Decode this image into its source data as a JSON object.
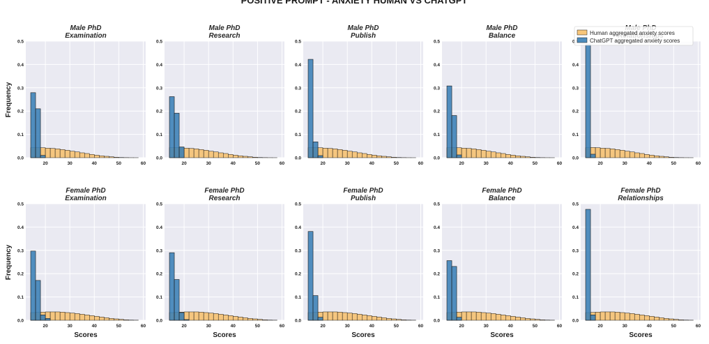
{
  "figure_title": "POSITIVE PROMPT - ANXIETY HUMAN VS CHATGPT",
  "axis_labels": {
    "x": "Scores",
    "y": "Frequency"
  },
  "colors": {
    "human": "#f7c06b",
    "chatgpt": "#3a7fb6",
    "panel_bg": "#eaeaf2",
    "grid": "#ffffff",
    "edge": "#1a1a1a"
  },
  "legend": {
    "location": "top-right of last top-row panel",
    "entries": [
      "Human aggregated anxiety scores",
      "ChatGPT aggregated anxiety scores"
    ]
  },
  "chart_data": {
    "type": "histogram",
    "xlim": [
      12,
      61
    ],
    "ylim": [
      0,
      0.5
    ],
    "xticks": [
      20,
      30,
      40,
      50,
      60
    ],
    "yticks": [
      0.0,
      0.1,
      0.2,
      0.3,
      0.4,
      0.5
    ],
    "bin_width": 2,
    "bin_start": 14,
    "human_rows": [
      [
        0.043,
        0.044,
        0.043,
        0.041,
        0.04,
        0.038,
        0.035,
        0.032,
        0.028,
        0.025,
        0.021,
        0.018,
        0.014,
        0.011,
        0.008,
        0.006,
        0.004,
        0.002,
        0.001,
        0.0005,
        0.0002,
        0.0001
      ],
      [
        0.033,
        0.034,
        0.035,
        0.036,
        0.036,
        0.036,
        0.035,
        0.033,
        0.031,
        0.029,
        0.026,
        0.023,
        0.02,
        0.017,
        0.014,
        0.011,
        0.008,
        0.006,
        0.004,
        0.002,
        0.001,
        0.0005
      ]
    ],
    "panels": [
      {
        "title_line1": "Male PhD",
        "title_line2": "Examination",
        "chatgpt_values": [
          0.279,
          0.21,
          0.01
        ]
      },
      {
        "title_line1": "Male PhD",
        "title_line2": "Research",
        "chatgpt_values": [
          0.262,
          0.191,
          0.046
        ]
      },
      {
        "title_line1": "Male PhD",
        "title_line2": "Publish",
        "chatgpt_values": [
          0.422,
          0.068,
          0.009
        ]
      },
      {
        "title_line1": "Male PhD",
        "title_line2": "Balance",
        "chatgpt_values": [
          0.308,
          0.181,
          0.012
        ]
      },
      {
        "title_line1": "Male PhD",
        "title_line2": "Relationships",
        "chatgpt_values": [
          0.485,
          0.015
        ]
      },
      {
        "title_line1": "Female PhD",
        "title_line2": "Examination",
        "chatgpt_values": [
          0.297,
          0.171,
          0.023,
          0.008
        ]
      },
      {
        "title_line1": "Female PhD",
        "title_line2": "Research",
        "chatgpt_values": [
          0.29,
          0.175,
          0.033,
          0.003
        ]
      },
      {
        "title_line1": "Female PhD",
        "title_line2": "Publish",
        "chatgpt_values": [
          0.381,
          0.106,
          0.013
        ]
      },
      {
        "title_line1": "Female PhD",
        "title_line2": "Balance",
        "chatgpt_values": [
          0.256,
          0.231,
          0.013
        ]
      },
      {
        "title_line1": "Female PhD",
        "title_line2": "Relationships",
        "chatgpt_values": [
          0.476,
          0.023
        ]
      }
    ]
  }
}
